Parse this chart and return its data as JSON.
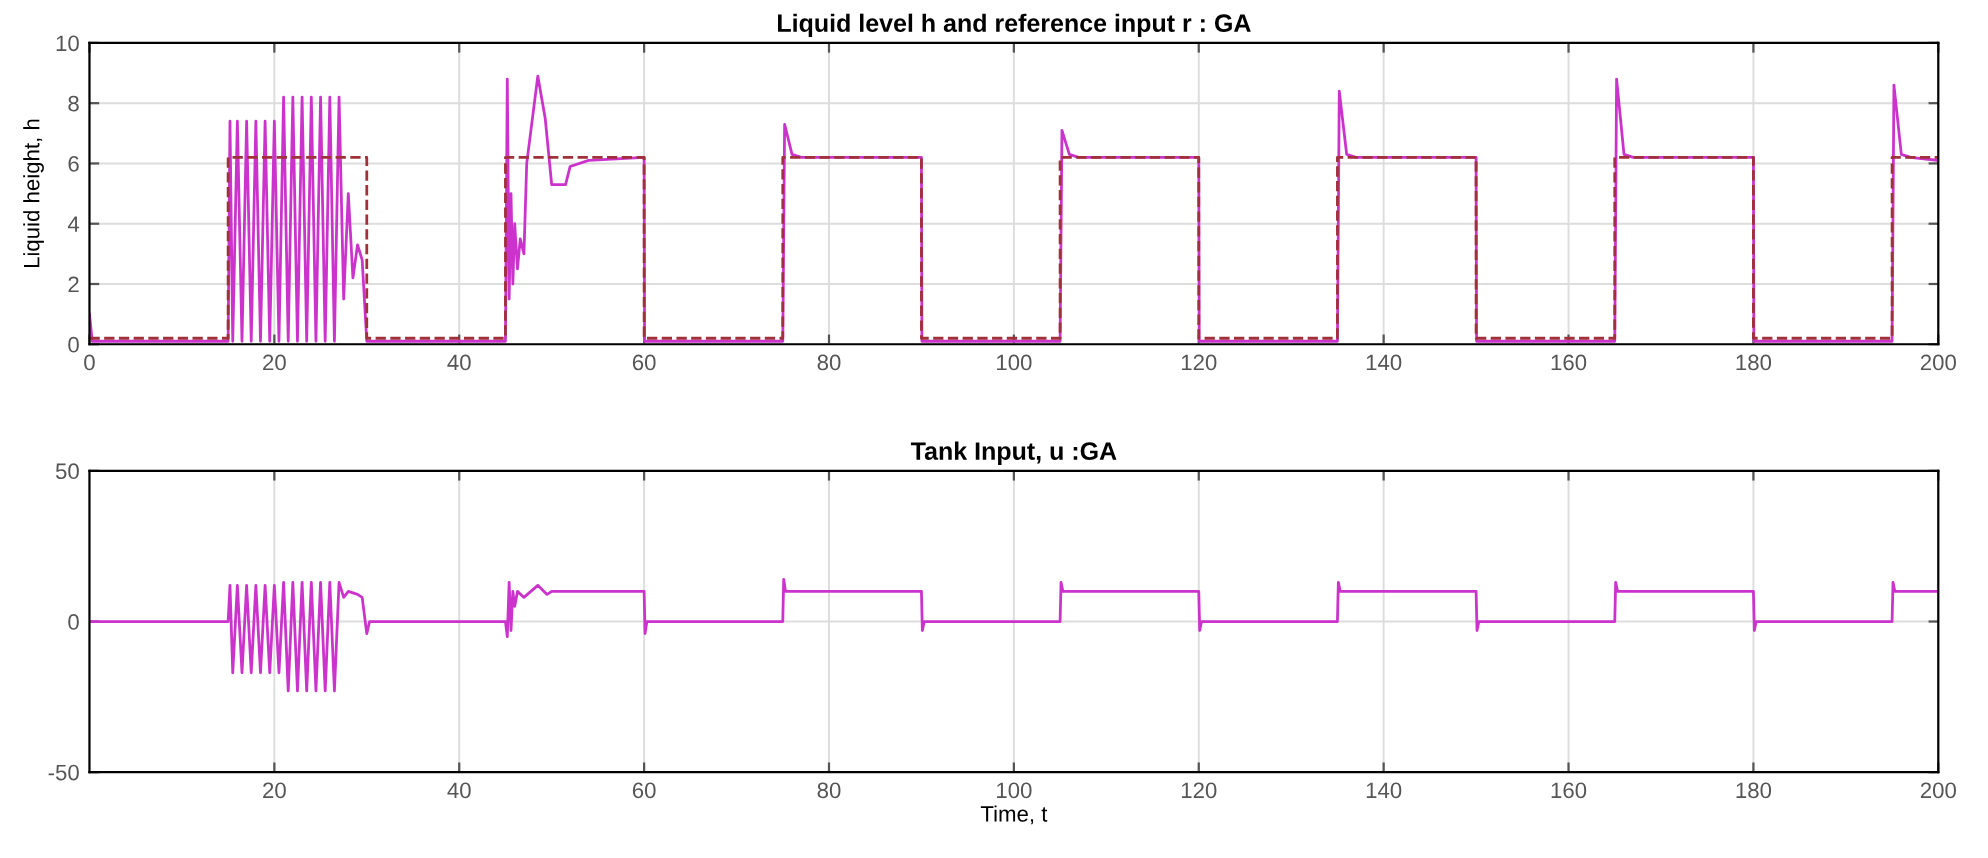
{
  "chart_data": [
    {
      "type": "line",
      "title": "Liquid level h and reference input r : GA",
      "ylabel": "Liquid height, h",
      "xlim": [
        0,
        200
      ],
      "xticks": [
        0,
        20,
        40,
        60,
        80,
        100,
        120,
        140,
        160,
        180,
        200
      ],
      "ylim": [
        0,
        10
      ],
      "yticks": [
        0,
        2,
        4,
        6,
        8,
        10
      ],
      "grid": true,
      "series": [
        {
          "color": "#cc33cc",
          "x": [
            0,
            0.3,
            15,
            15.2,
            15.5,
            16,
            16.5,
            17,
            17.5,
            18,
            18.5,
            19,
            19.5,
            20,
            20.5,
            21,
            21.5,
            22,
            22.5,
            23,
            23.5,
            24,
            24.5,
            25,
            25.5,
            26,
            26.5,
            27,
            27.5,
            28,
            28.5,
            29,
            29.5,
            30,
            45,
            45.2,
            45.4,
            45.6,
            45.8,
            46,
            46.3,
            46.6,
            47,
            47.3,
            48.5,
            49.3,
            50,
            51.5,
            52,
            54,
            60,
            60.05,
            75,
            75.2,
            76,
            77,
            90,
            90.05,
            105,
            105.2,
            106,
            107,
            120,
            120.05,
            135,
            135.2,
            136,
            137,
            150,
            150.05,
            165,
            165.2,
            166,
            167,
            180,
            180.05,
            195,
            195.2,
            196,
            197,
            200
          ],
          "values": [
            1,
            0.1,
            0.1,
            7.4,
            0.1,
            7.4,
            0.1,
            7.4,
            0.1,
            7.4,
            0.1,
            7.4,
            0.1,
            7.4,
            0.1,
            8.2,
            0.1,
            8.2,
            0.1,
            8.2,
            0.1,
            8.2,
            0.1,
            8.2,
            0.1,
            8.2,
            0.1,
            8.2,
            1.5,
            5,
            2.2,
            3.3,
            2.8,
            0.1,
            0.1,
            8.8,
            1.5,
            5,
            2,
            4,
            2.5,
            3.5,
            3,
            6,
            8.9,
            7.5,
            5.3,
            5.3,
            5.9,
            6.1,
            6.2,
            0.1,
            0.1,
            7.3,
            6.3,
            6.2,
            6.2,
            0.1,
            0.1,
            7.1,
            6.3,
            6.2,
            6.2,
            0.1,
            0.1,
            8.4,
            6.3,
            6.2,
            6.2,
            0.1,
            0.1,
            8.8,
            6.3,
            6.2,
            6.2,
            0.1,
            0.1,
            8.6,
            6.3,
            6.2,
            6.1
          ]
        },
        {
          "type": "step",
          "color": "#a0303a",
          "line_style": "dashed",
          "x": [
            0,
            15,
            30,
            45,
            60,
            75,
            90,
            105,
            120,
            135,
            150,
            165,
            180,
            195,
            200
          ],
          "values": [
            0.2,
            6.2,
            0.2,
            6.2,
            0.2,
            6.2,
            0.2,
            6.2,
            0.2,
            6.2,
            0.2,
            6.2,
            0.2,
            6.2,
            6.2
          ]
        }
      ]
    },
    {
      "type": "line",
      "title": "Tank Input, u :GA",
      "xlabel": "Time, t",
      "xlim": [
        0,
        200
      ],
      "xticks": [
        20,
        40,
        60,
        80,
        100,
        120,
        140,
        160,
        180,
        200
      ],
      "ylim": [
        -50,
        50
      ],
      "yticks": [
        -50,
        0,
        50
      ],
      "grid": true,
      "series": [
        {
          "color": "#cc33cc",
          "x": [
            0,
            15,
            15.2,
            15.5,
            16,
            16.5,
            17,
            17.5,
            18,
            18.5,
            19,
            19.5,
            20,
            20.5,
            21,
            21.5,
            22,
            22.5,
            23,
            23.5,
            24,
            24.5,
            25,
            25.5,
            26,
            26.5,
            27,
            27.5,
            28,
            29,
            29.5,
            30,
            30.3,
            45,
            45.2,
            45.4,
            45.6,
            45.8,
            46,
            46.3,
            47,
            48.5,
            49.5,
            50,
            60,
            60.1,
            60.3,
            75,
            75.1,
            75.3,
            90,
            90.1,
            90.3,
            105,
            105.1,
            105.3,
            120,
            120.1,
            120.3,
            135,
            135.1,
            135.3,
            150,
            150.1,
            150.3,
            165,
            165.1,
            165.3,
            180,
            180.1,
            180.3,
            195,
            195.1,
            195.3,
            200
          ],
          "values": [
            0,
            0,
            12,
            -17,
            12,
            -17,
            12,
            -17,
            12,
            -17,
            12,
            -17,
            12,
            -17,
            13,
            -23,
            13,
            -23,
            13,
            -23,
            13,
            -23,
            13,
            -23,
            13,
            -23,
            13,
            8,
            10,
            9,
            8,
            -4,
            0,
            0,
            -5,
            13,
            -3,
            10,
            5,
            10,
            8,
            12,
            9,
            10,
            10,
            -4,
            0,
            0,
            14,
            10,
            10,
            -3,
            0,
            0,
            13,
            10,
            10,
            -3,
            0,
            0,
            13,
            10,
            10,
            -3,
            0,
            0,
            13,
            10,
            10,
            -3,
            0,
            0,
            13,
            10,
            10
          ]
        }
      ]
    }
  ]
}
